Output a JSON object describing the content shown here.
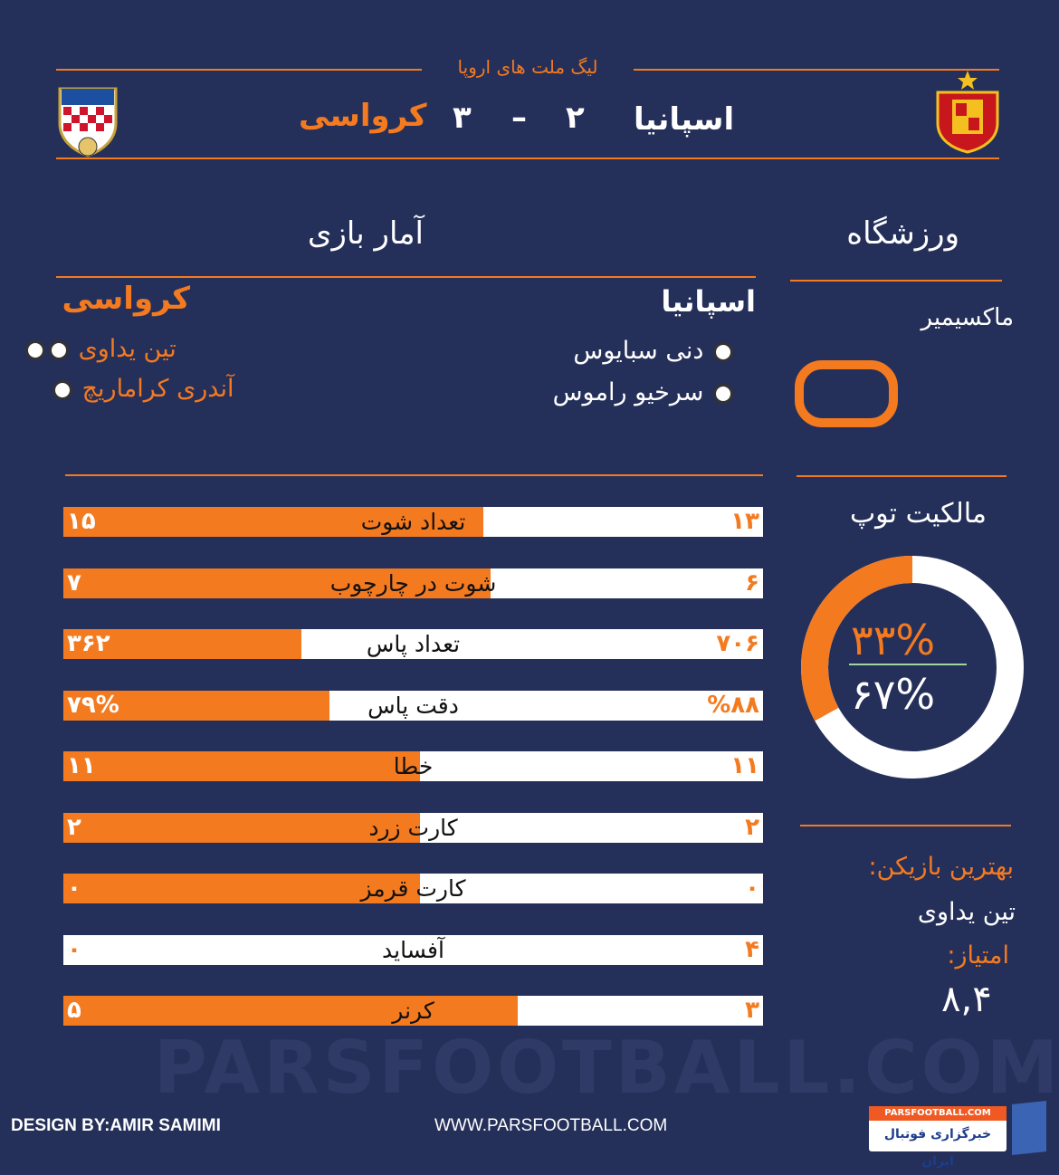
{
  "header": {
    "competition": "لیگ ملت های اروپا",
    "home_team": "اسپانیا",
    "home_score": "۲",
    "separator": "–",
    "away_score": "۳",
    "away_team": "کرواسی"
  },
  "sections": {
    "stats_title": "آمار بازی",
    "stadium_title": "ورزشگاه",
    "stadium_name": "ماکسیمیر",
    "possession_title": "مالکیت توپ"
  },
  "scorers": {
    "home_team": "اسپانیا",
    "home": [
      "دنی سبایوس",
      "سرخیو راموس"
    ],
    "away_team": "کرواسی",
    "away": [
      "تین یداوی",
      "آندری کراماریچ"
    ]
  },
  "stats": [
    {
      "label": "تعداد شوت",
      "spain": "۱۳",
      "croatia": "۱۵",
      "croatia_fill": 0.6
    },
    {
      "label": "شوت در چارچوب",
      "spain": "۶",
      "croatia": "۷",
      "croatia_fill": 0.61
    },
    {
      "label": "تعداد پاس",
      "spain": "۷۰۶",
      "croatia": "۳۶۲",
      "croatia_fill": 0.34
    },
    {
      "label": "دقت پاس",
      "spain": "%۸۸",
      "croatia": "۷۹%",
      "croatia_fill": 0.38
    },
    {
      "label": "خطا",
      "spain": "۱۱",
      "croatia": "۱۱",
      "croatia_fill": 0.51
    },
    {
      "label": "کارت زرد",
      "spain": "۲",
      "croatia": "۲",
      "croatia_fill": 0.51
    },
    {
      "label": "کارت قرمز",
      "spain": "۰",
      "croatia": "۰",
      "croatia_fill": 0.51
    },
    {
      "label": "آفساید",
      "spain": "۴",
      "croatia": "۰",
      "croatia_fill": 0
    },
    {
      "label": "کرنر",
      "spain": "۳",
      "croatia": "۵",
      "croatia_fill": 0.65
    }
  ],
  "possession": {
    "croatia": "۳۳%",
    "spain": "۶۷%",
    "croatia_value": 33,
    "spain_value": 67
  },
  "best_player": {
    "label": "بهترین بازیکن:",
    "name": "تین یداوی",
    "rating_label": "امتیاز:",
    "rating": "۸,۴"
  },
  "footer": {
    "designer": "DESIGN BY:AMIR SAMIMI",
    "website": "WWW.PARSFOOTBALL.COM",
    "logo_top": "PARSFOOTBALL.COM",
    "logo_bottom": "خبرگزاری فوتبال ایران",
    "watermark": "PARSFOOTBALL.COM"
  },
  "colors": {
    "background": "#25305a",
    "accent": "#f47a20"
  }
}
